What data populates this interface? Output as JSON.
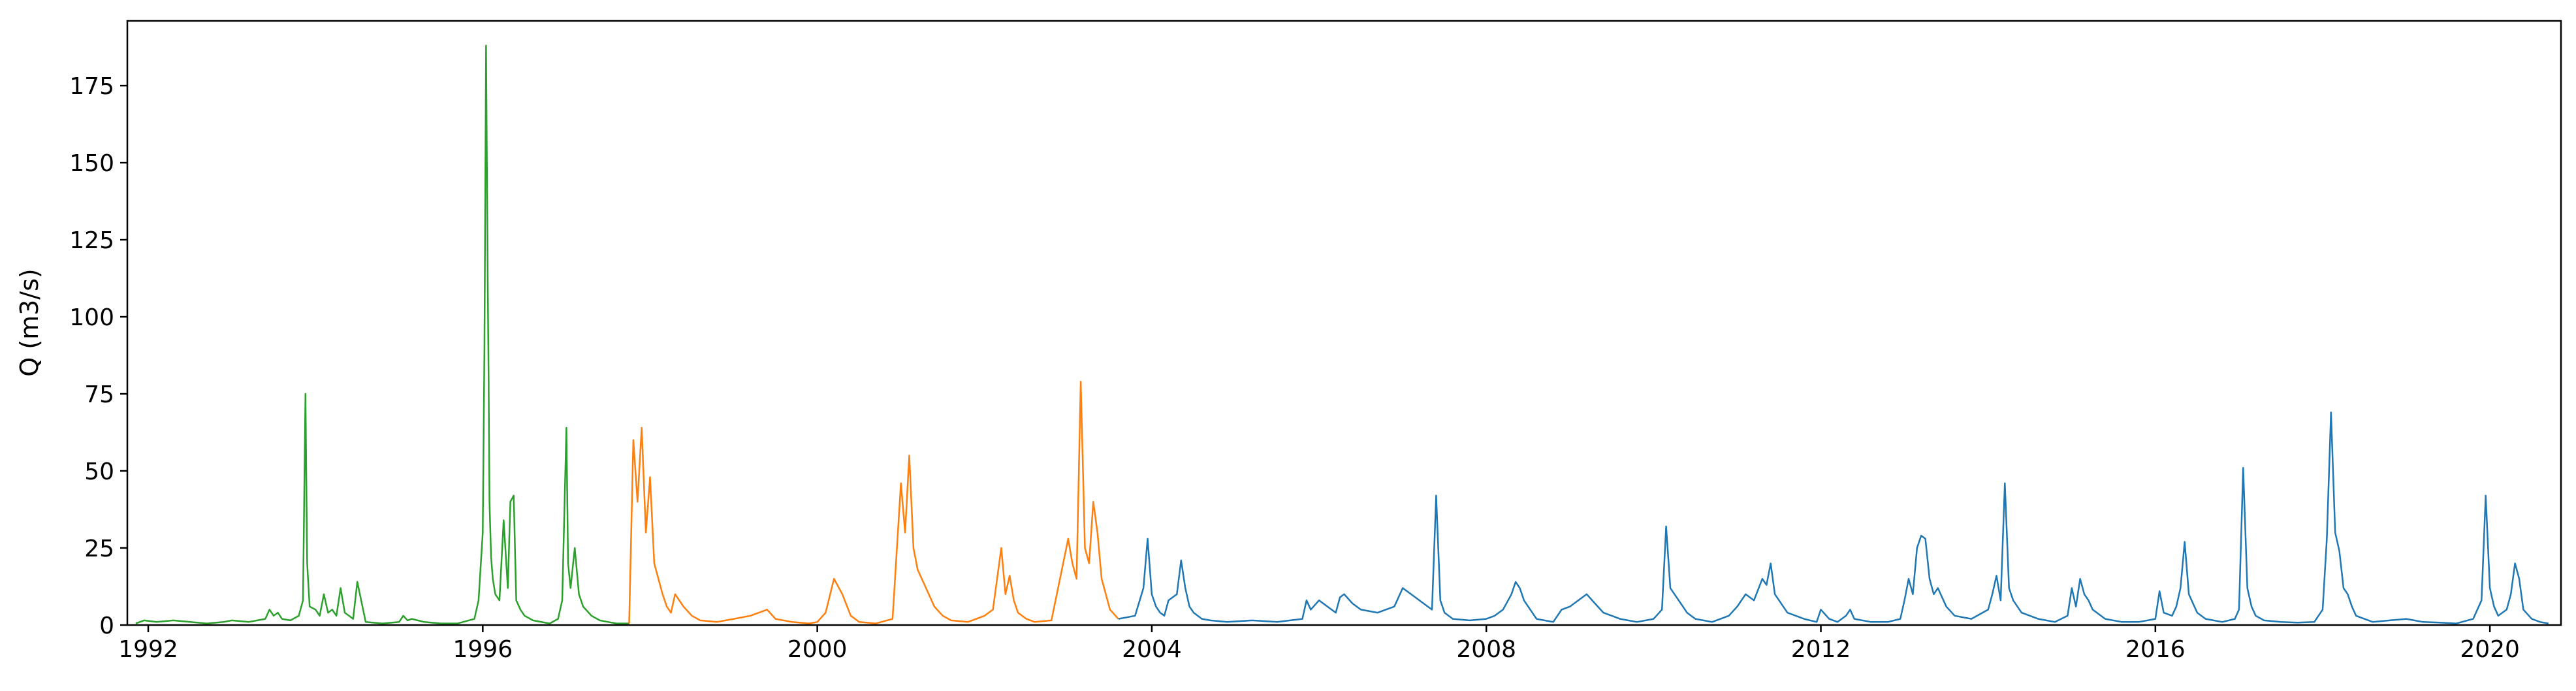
{
  "chart_data": {
    "type": "line",
    "title": "",
    "xlabel": "",
    "ylabel": "Q (m3/s)",
    "xlim": [
      1991.75,
      2020.85
    ],
    "ylim": [
      0,
      196
    ],
    "x_ticks": [
      {
        "value": 1992,
        "label": "1992"
      },
      {
        "value": 1996,
        "label": "1996"
      },
      {
        "value": 2000,
        "label": "2000"
      },
      {
        "value": 2004,
        "label": "2004"
      },
      {
        "value": 2008,
        "label": "2008"
      },
      {
        "value": 2012,
        "label": "2012"
      },
      {
        "value": 2016,
        "label": "2016"
      },
      {
        "value": 2020,
        "label": "2020"
      }
    ],
    "y_ticks": [
      {
        "value": 0,
        "label": "0"
      },
      {
        "value": 25,
        "label": "25"
      },
      {
        "value": 50,
        "label": "50"
      },
      {
        "value": 75,
        "label": "75"
      },
      {
        "value": 100,
        "label": "100"
      },
      {
        "value": 125,
        "label": "125"
      },
      {
        "value": 150,
        "label": "150"
      },
      {
        "value": 175,
        "label": "175"
      }
    ],
    "grid": false,
    "legend": "none",
    "series": [
      {
        "color": "#2ca02c",
        "x": [
          1991.85,
          1991.95,
          1992.1,
          1992.3,
          1992.5,
          1992.7,
          1992.9,
          1993.0,
          1993.2,
          1993.4,
          1993.45,
          1993.5,
          1993.55,
          1993.6,
          1993.7,
          1993.8,
          1993.85,
          1993.88,
          1993.9,
          1993.93,
          1994.0,
          1994.05,
          1994.1,
          1994.15,
          1994.2,
          1994.25,
          1994.3,
          1994.35,
          1994.4,
          1994.45,
          1994.5,
          1994.6,
          1994.8,
          1995.0,
          1995.05,
          1995.1,
          1995.15,
          1995.3,
          1995.5,
          1995.7,
          1995.9,
          1995.95,
          1996.0,
          1996.02,
          1996.04,
          1996.06,
          1996.07,
          1996.08,
          1996.1,
          1996.12,
          1996.15,
          1996.2,
          1996.25,
          1996.3,
          1996.33,
          1996.37,
          1996.4,
          1996.45,
          1996.5,
          1996.6,
          1996.8,
          1996.9,
          1996.95,
          1997.0,
          1997.02,
          1997.05,
          1997.1,
          1997.15,
          1997.2,
          1997.3,
          1997.4,
          1997.5,
          1997.6,
          1997.75
        ],
        "y": [
          0.5,
          1.5,
          1.0,
          1.5,
          1.0,
          0.5,
          1.0,
          1.5,
          1.0,
          2.0,
          5.0,
          3.0,
          4.0,
          2.0,
          1.5,
          3.0,
          8.0,
          75.0,
          20.0,
          6.0,
          5.0,
          3.0,
          10.0,
          4.0,
          5.0,
          3.0,
          12.0,
          4.0,
          3.0,
          2.0,
          14.0,
          1.0,
          0.5,
          1.0,
          3.0,
          1.5,
          2.0,
          1.0,
          0.5,
          0.5,
          2.0,
          8.0,
          30.0,
          90.0,
          188.0,
          110.0,
          80.0,
          40.0,
          22.0,
          15.0,
          10.0,
          8.0,
          34.0,
          12.0,
          40.0,
          42.0,
          8.0,
          5.0,
          3.0,
          1.5,
          0.5,
          2.0,
          8.0,
          64.0,
          20.0,
          12.0,
          25.0,
          10.0,
          6.0,
          3.0,
          1.5,
          1.0,
          0.5,
          0.5
        ]
      },
      {
        "color": "#ff7f0e",
        "x": [
          1997.75,
          1997.8,
          1997.85,
          1997.9,
          1997.95,
          1998.0,
          1998.05,
          1998.1,
          1998.15,
          1998.2,
          1998.25,
          1998.3,
          1998.4,
          1998.5,
          1998.6,
          1998.8,
          1999.0,
          1999.2,
          1999.4,
          1999.5,
          1999.7,
          1999.9,
          2000.0,
          2000.1,
          2000.2,
          2000.3,
          2000.4,
          2000.5,
          2000.7,
          2000.9,
          2001.0,
          2001.05,
          2001.1,
          2001.15,
          2001.2,
          2001.3,
          2001.4,
          2001.5,
          2001.6,
          2001.8,
          2002.0,
          2002.1,
          2002.2,
          2002.25,
          2002.3,
          2002.35,
          2002.4,
          2002.5,
          2002.6,
          2002.8,
          2003.0,
          2003.05,
          2003.1,
          2003.15,
          2003.2,
          2003.25,
          2003.3,
          2003.35,
          2003.4,
          2003.5,
          2003.6
        ],
        "y": [
          0.5,
          60.0,
          40.0,
          64.0,
          30.0,
          48.0,
          20.0,
          15.0,
          10.0,
          6.0,
          4.0,
          10.0,
          6.0,
          3.0,
          1.5,
          1.0,
          2.0,
          3.0,
          5.0,
          2.0,
          1.0,
          0.5,
          1.0,
          4.0,
          15.0,
          10.0,
          3.0,
          1.0,
          0.5,
          2.0,
          46.0,
          30.0,
          55.0,
          25.0,
          18.0,
          12.0,
          6.0,
          3.0,
          1.5,
          1.0,
          3.0,
          5.0,
          25.0,
          10.0,
          16.0,
          8.0,
          4.0,
          2.0,
          1.0,
          1.5,
          28.0,
          20.0,
          15.0,
          79.0,
          25.0,
          20.0,
          40.0,
          30.0,
          15.0,
          5.0,
          2.0
        ]
      },
      {
        "color": "#1f77b4",
        "x": [
          2003.6,
          2003.8,
          2003.9,
          2003.95,
          2004.0,
          2004.05,
          2004.1,
          2004.15,
          2004.2,
          2004.3,
          2004.35,
          2004.4,
          2004.45,
          2004.5,
          2004.6,
          2004.7,
          2004.9,
          2005.2,
          2005.5,
          2005.8,
          2005.85,
          2005.9,
          2006.0,
          2006.1,
          2006.2,
          2006.25,
          2006.3,
          2006.4,
          2006.5,
          2006.7,
          2006.9,
          2007.0,
          2007.1,
          2007.2,
          2007.3,
          2007.35,
          2007.4,
          2007.45,
          2007.5,
          2007.6,
          2007.8,
          2008.0,
          2008.1,
          2008.2,
          2008.3,
          2008.35,
          2008.4,
          2008.45,
          2008.5,
          2008.6,
          2008.8,
          2008.9,
          2009.0,
          2009.1,
          2009.2,
          2009.3,
          2009.4,
          2009.6,
          2009.8,
          2010.0,
          2010.1,
          2010.15,
          2010.2,
          2010.3,
          2010.4,
          2010.5,
          2010.7,
          2010.9,
          2011.0,
          2011.1,
          2011.2,
          2011.3,
          2011.35,
          2011.4,
          2011.45,
          2011.5,
          2011.6,
          2011.8,
          2011.95,
          2012.0,
          2012.1,
          2012.2,
          2012.3,
          2012.35,
          2012.4,
          2012.6,
          2012.8,
          2012.95,
          2013.0,
          2013.05,
          2013.1,
          2013.15,
          2013.2,
          2013.25,
          2013.3,
          2013.35,
          2013.4,
          2013.5,
          2013.6,
          2013.8,
          2014.0,
          2014.05,
          2014.1,
          2014.15,
          2014.2,
          2014.25,
          2014.3,
          2014.4,
          2014.6,
          2014.8,
          2014.95,
          2015.0,
          2015.05,
          2015.1,
          2015.15,
          2015.2,
          2015.25,
          2015.3,
          2015.4,
          2015.6,
          2015.8,
          2016.0,
          2016.05,
          2016.1,
          2016.2,
          2016.25,
          2016.3,
          2016.35,
          2016.4,
          2016.5,
          2016.6,
          2016.8,
          2016.95,
          2017.0,
          2017.05,
          2017.1,
          2017.15,
          2017.2,
          2017.3,
          2017.5,
          2017.7,
          2017.9,
          2018.0,
          2018.05,
          2018.1,
          2018.15,
          2018.2,
          2018.25,
          2018.3,
          2018.35,
          2018.4,
          2018.5,
          2018.6,
          2018.8,
          2019.0,
          2019.2,
          2019.4,
          2019.6,
          2019.8,
          2019.9,
          2019.95,
          2020.0,
          2020.05,
          2020.1,
          2020.2,
          2020.25,
          2020.3,
          2020.35,
          2020.4,
          2020.5,
          2020.6,
          2020.7
        ],
        "y": [
          2.0,
          3.0,
          12.0,
          28.0,
          10.0,
          6.0,
          4.0,
          3.0,
          8.0,
          10.0,
          21.0,
          12.0,
          6.0,
          4.0,
          2.0,
          1.5,
          1.0,
          1.5,
          1.0,
          2.0,
          8.0,
          5.0,
          8.0,
          6.0,
          4.0,
          9.0,
          10.0,
          7.0,
          5.0,
          4.0,
          6.0,
          12.0,
          10.0,
          8.0,
          6.0,
          5.0,
          42.0,
          8.0,
          4.0,
          2.0,
          1.5,
          2.0,
          3.0,
          5.0,
          10.0,
          14.0,
          12.0,
          8.0,
          6.0,
          2.0,
          1.0,
          5.0,
          6.0,
          8.0,
          10.0,
          7.0,
          4.0,
          2.0,
          1.0,
          2.0,
          5.0,
          32.0,
          12.0,
          8.0,
          4.0,
          2.0,
          1.0,
          3.0,
          6.0,
          10.0,
          8.0,
          15.0,
          13.0,
          20.0,
          10.0,
          8.0,
          4.0,
          2.0,
          1.0,
          5.0,
          2.0,
          1.0,
          3.0,
          5.0,
          2.0,
          1.0,
          1.0,
          2.0,
          8.0,
          15.0,
          10.0,
          25.0,
          29.0,
          28.0,
          15.0,
          10.0,
          12.0,
          6.0,
          3.0,
          2.0,
          5.0,
          10.0,
          16.0,
          8.0,
          46.0,
          12.0,
          8.0,
          4.0,
          2.0,
          1.0,
          3.0,
          12.0,
          6.0,
          15.0,
          10.0,
          8.0,
          5.0,
          4.0,
          2.0,
          1.0,
          1.0,
          2.0,
          11.0,
          4.0,
          3.0,
          6.0,
          12.0,
          27.0,
          10.0,
          4.0,
          2.0,
          1.0,
          2.0,
          5.0,
          51.0,
          12.0,
          6.0,
          3.0,
          1.5,
          1.0,
          0.8,
          1.0,
          5.0,
          28.0,
          69.0,
          30.0,
          24.0,
          12.0,
          10.0,
          6.0,
          3.0,
          2.0,
          1.0,
          1.5,
          2.0,
          1.0,
          0.8,
          0.5,
          2.0,
          8.0,
          42.0,
          12.0,
          6.0,
          3.0,
          5.0,
          10.0,
          20.0,
          15.0,
          5.0,
          2.0,
          1.0,
          0.5
        ]
      }
    ]
  }
}
